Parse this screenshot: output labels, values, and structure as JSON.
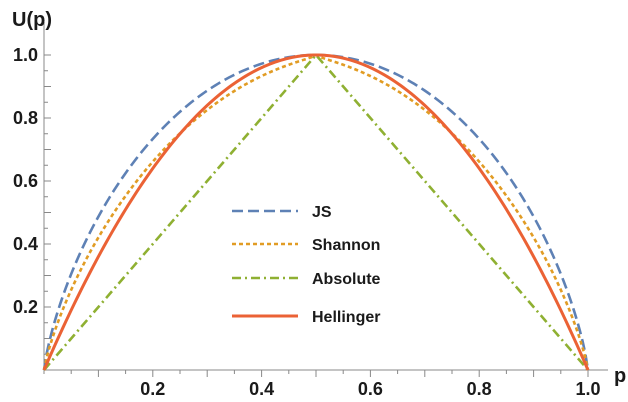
{
  "chart_data": {
    "type": "line",
    "xlabel": "p",
    "ylabel": "U(p)",
    "xlim": [
      0,
      1
    ],
    "ylim": [
      0,
      1
    ],
    "x_ticks": [
      "0.2",
      "0.4",
      "0.6",
      "0.8",
      "1.0"
    ],
    "y_ticks": [
      "0.2",
      "0.4",
      "0.6",
      "0.8",
      "1.0"
    ],
    "legend_position": "center",
    "grid": false,
    "x": [
      0,
      0.05,
      0.1,
      0.15,
      0.2,
      0.25,
      0.3,
      0.35,
      0.4,
      0.45,
      0.5,
      0.55,
      0.6,
      0.65,
      0.7,
      0.75,
      0.8,
      0.85,
      0.9,
      0.95,
      1
    ],
    "series": [
      {
        "name": "JS",
        "color": "#5e81b5",
        "dash": "dashed",
        "values": [
          0,
          0.4,
          0.56,
          0.68,
          0.77,
          0.84,
          0.9,
          0.95,
          0.98,
          0.995,
          1.0,
          0.995,
          0.98,
          0.95,
          0.9,
          0.84,
          0.77,
          0.68,
          0.56,
          0.4,
          0
        ]
      },
      {
        "name": "Shannon",
        "color": "#e19c24",
        "dash": "dotted",
        "values": [
          0,
          0.29,
          0.47,
          0.61,
          0.72,
          0.81,
          0.88,
          0.93,
          0.97,
          0.99,
          1.0,
          0.99,
          0.97,
          0.93,
          0.88,
          0.81,
          0.72,
          0.61,
          0.47,
          0.29,
          0
        ]
      },
      {
        "name": "Absolute",
        "color": "#8fb032",
        "dash": "dashdot",
        "values": [
          0,
          0.1,
          0.2,
          0.3,
          0.4,
          0.5,
          0.6,
          0.7,
          0.8,
          0.9,
          1.0,
          0.9,
          0.8,
          0.7,
          0.6,
          0.5,
          0.4,
          0.3,
          0.2,
          0.1,
          0
        ]
      },
      {
        "name": "Hellinger",
        "color": "#eb6235",
        "dash": "solid",
        "values": [
          0,
          0.19,
          0.36,
          0.51,
          0.64,
          0.75,
          0.84,
          0.91,
          0.96,
          0.99,
          1.0,
          0.99,
          0.96,
          0.91,
          0.84,
          0.75,
          0.64,
          0.51,
          0.36,
          0.19,
          0
        ]
      }
    ]
  }
}
